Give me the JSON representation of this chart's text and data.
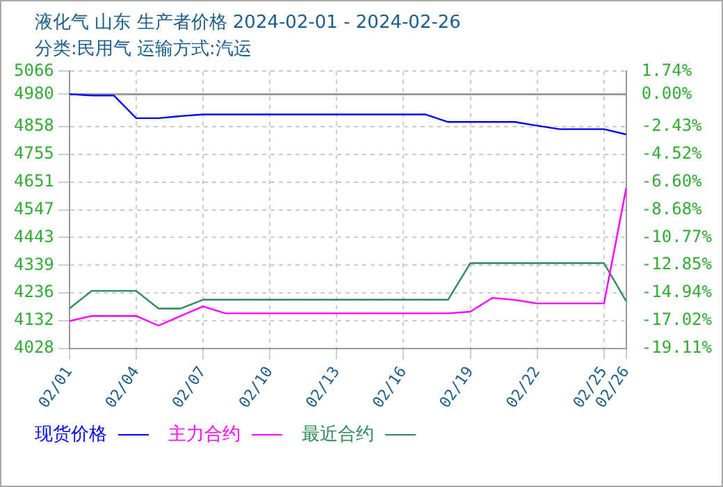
{
  "chart_data": {
    "type": "line",
    "title": "液化气 山东 生产者价格 2024-02-01 - 2024-02-26",
    "subtitle": "分类:民用气 运输方式:汽运",
    "x": [
      "2024-02-01",
      "2024-02-02",
      "2024-02-03",
      "2024-02-04",
      "2024-02-05",
      "2024-02-06",
      "2024-02-07",
      "2024-02-08",
      "2024-02-09",
      "2024-02-10",
      "2024-02-11",
      "2024-02-12",
      "2024-02-13",
      "2024-02-14",
      "2024-02-15",
      "2024-02-16",
      "2024-02-17",
      "2024-02-18",
      "2024-02-19",
      "2024-02-20",
      "2024-02-21",
      "2024-02-22",
      "2024-02-23",
      "2024-02-24",
      "2024-02-25",
      "2024-02-26"
    ],
    "series": [
      {
        "name": "现货价格",
        "color": "#0000ff",
        "values": [
          4980,
          4975,
          4975,
          4890,
          4890,
          4898,
          4904,
          4904,
          4904,
          4904,
          4904,
          4904,
          4904,
          4904,
          4904,
          4904,
          4904,
          4876,
          4876,
          4876,
          4876,
          4862,
          4849,
          4849,
          4849,
          4829
        ]
      },
      {
        "name": "主力合约",
        "color": "#ff00ff",
        "values": [
          4130,
          4149,
          4149,
          4149,
          4113,
          4149,
          4185,
          4159,
          4159,
          4159,
          4159,
          4159,
          4159,
          4159,
          4159,
          4159,
          4159,
          4159,
          4165,
          4217,
          4209,
          4196,
          4196,
          4196,
          4196,
          4629
        ]
      },
      {
        "name": "最近合约",
        "color": "#2e8b57",
        "values": [
          4177,
          4243,
          4243,
          4243,
          4177,
          4177,
          4210,
          4210,
          4210,
          4210,
          4210,
          4210,
          4210,
          4210,
          4210,
          4210,
          4210,
          4210,
          4347,
          4347,
          4347,
          4347,
          4347,
          4347,
          4347,
          4204
        ]
      }
    ],
    "xlim": [
      "2024-02-01",
      "2024-02-26"
    ],
    "xticks": [
      {
        "value": "2024-02-01",
        "label": "02/01"
      },
      {
        "value": "2024-02-04",
        "label": "02/04"
      },
      {
        "value": "2024-02-07",
        "label": "02/07"
      },
      {
        "value": "2024-02-10",
        "label": "02/10"
      },
      {
        "value": "2024-02-13",
        "label": "02/13"
      },
      {
        "value": "2024-02-16",
        "label": "02/16"
      },
      {
        "value": "2024-02-19",
        "label": "02/19"
      },
      {
        "value": "2024-02-22",
        "label": "02/22"
      },
      {
        "value": "2024-02-25",
        "label": "02/25"
      },
      {
        "value": "2024-02-26",
        "label": "02/26"
      }
    ],
    "ylim": [
      4028,
      5066
    ],
    "yticks": [
      4028,
      4132,
      4236,
      4339,
      4443,
      4547,
      4651,
      4755,
      4858,
      4980,
      5066
    ],
    "y2lim": [
      -19.11,
      1.74
    ],
    "y2ticks": [
      {
        "value": -19.11,
        "label": "-19.11%"
      },
      {
        "value": -17.02,
        "label": "-17.02%"
      },
      {
        "value": -14.94,
        "label": "-14.94%"
      },
      {
        "value": -12.85,
        "label": "-12.85%"
      },
      {
        "value": -10.77,
        "label": "-10.77%"
      },
      {
        "value": -8.68,
        "label": "-8.68%"
      },
      {
        "value": -6.6,
        "label": "-6.60%"
      },
      {
        "value": -4.52,
        "label": "-4.52%"
      },
      {
        "value": -2.43,
        "label": "-2.43%"
      },
      {
        "value": 0,
        "label": "0.00%"
      },
      {
        "value": 1.74,
        "label": "1.74%"
      }
    ],
    "ref_lines": [
      {
        "axis": "y",
        "value": 4980,
        "color": "#999999"
      }
    ],
    "grid": true,
    "legend": "bottom",
    "marker": "none",
    "line_style": "solid"
  }
}
